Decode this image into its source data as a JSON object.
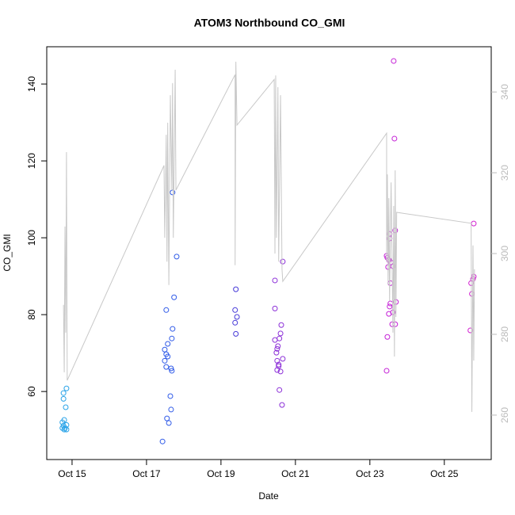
{
  "chart_data": {
    "type": "scatter",
    "title": "ATOM3 Northbound CO_GMI",
    "x_label": "Date",
    "y_label": "CO_GMI",
    "xlim": [
      14.32,
      26.26
    ],
    "xticks": [
      {
        "value": 15,
        "label": "Oct 15"
      },
      {
        "value": 17,
        "label": "Oct 17"
      },
      {
        "value": 19,
        "label": "Oct 19"
      },
      {
        "value": 21,
        "label": "Oct 21"
      },
      {
        "value": 23,
        "label": "Oct 23"
      },
      {
        "value": 25,
        "label": "Oct 25"
      }
    ],
    "ylim": [
      42.3,
      149.7
    ],
    "yticks": [
      60,
      80,
      100,
      120,
      140
    ],
    "y2lim": [
      249,
      351.2
    ],
    "y2ticks": [
      260,
      280,
      300,
      320,
      340
    ],
    "y2_color": "#bbbbbb",
    "series": [
      {
        "color": "#29a3e8",
        "x": [
          14.77,
          14.77,
          14.85,
          14.83,
          14.79,
          14.74,
          14.77,
          14.81,
          14.85,
          14.85,
          14.74,
          14.79
        ],
        "values": [
          59.6,
          58.1,
          60.8,
          55.9,
          52.6,
          52,
          51.1,
          50.5,
          50.1,
          51.3,
          50.5,
          50.1
        ]
      },
      {
        "color": "#2f5ae8",
        "x": [
          17.43,
          17.53,
          17.55,
          17.6,
          17.64,
          17.66,
          17.53,
          17.66,
          17.68,
          17.57,
          17.49,
          17.49,
          17.57,
          17.53,
          17.7,
          17.68,
          17.7,
          17.74,
          17.81
        ],
        "values": [
          47,
          81.2,
          53,
          51.8,
          58.8,
          55.3,
          66.4,
          66,
          65.4,
          69.1,
          68,
          70.9,
          72.4,
          69.7,
          76.3,
          73.8,
          111.8,
          84.5,
          95.1
        ]
      },
      {
        "color": "#4538d8",
        "x": [
          19.4,
          19.38,
          19.43,
          19.38,
          19.4
        ],
        "values": [
          86.6,
          81.2,
          79.4,
          77.9,
          75
        ]
      },
      {
        "color": "#8c2fd8",
        "x": [
          20.45,
          20.45,
          20.45,
          20.49,
          20.51,
          20.53,
          20.57,
          20.6,
          20.62,
          20.66,
          20.51,
          20.55,
          20.51,
          20.6,
          20.57,
          20.64,
          20.66,
          20.55
        ],
        "values": [
          88.9,
          81.6,
          73.4,
          70.1,
          71.1,
          71.8,
          73.8,
          75.1,
          77.3,
          68.5,
          68,
          66.6,
          65.6,
          65.2,
          60.4,
          56.5,
          93.8,
          67
        ]
      },
      {
        "color": "#c41fd6",
        "x": [
          23.45,
          23.47,
          23.45,
          23.47,
          23.49,
          23.51,
          23.53,
          23.53,
          23.55,
          23.53,
          23.51,
          23.57,
          23.62,
          23.62,
          23.6,
          23.68,
          23.68,
          23.7,
          23.66,
          23.64,
          23.55
        ],
        "values": [
          65.4,
          74.2,
          95.3,
          94.8,
          92.4,
          94.2,
          99.8,
          101,
          88.2,
          82.1,
          80.2,
          93.6,
          92.6,
          80.6,
          77.5,
          77.5,
          101.9,
          83.3,
          125.8,
          146,
          82.9
        ]
      },
      {
        "color": "#d21fd0",
        "x": [
          25.79,
          25.79,
          25.77,
          25.72,
          25.74,
          25.7
        ],
        "values": [
          103.7,
          89.9,
          89.3,
          88.2,
          85.4,
          75.9
        ]
      },
      {
        "type": "line",
        "axis": "y2",
        "color": "#c8c8c8",
        "x": [
          14.77,
          14.79,
          14.81,
          14.83,
          14.85,
          14.87,
          17.47,
          17.49,
          17.53,
          17.55,
          17.57,
          17.6,
          17.64,
          17.68,
          17.7,
          17.72,
          17.77,
          17.79,
          19.38,
          19.38,
          19.4,
          19.43,
          20.43,
          20.45,
          20.47,
          20.49,
          20.53,
          20.55,
          20.6,
          20.64,
          20.66,
          23.45,
          23.45,
          23.47,
          23.49,
          23.51,
          23.53,
          23.57,
          23.62,
          23.64,
          23.66,
          23.68,
          23.7,
          23.72,
          25.72,
          25.74,
          25.77,
          25.79,
          25.81
        ],
        "values": [
          287.3,
          270.6,
          306.7,
          280.4,
          325.1,
          268.6,
          321.8,
          303.9,
          329.4,
          298,
          332.4,
          292.2,
          339.2,
          315.7,
          342.2,
          303.9,
          345.5,
          315.7,
          344.3,
          297.1,
          347.5,
          331.8,
          343.1,
          300,
          344.1,
          303.9,
          341.2,
          298,
          339.2,
          296.1,
          293.1,
          329.8,
          298,
          319.6,
          292.2,
          313.7,
          288.2,
          317.6,
          280.4,
          311.8,
          274.5,
          320.6,
          284.3,
          310.2,
          307.5,
          260.8,
          302,
          273.5,
          296.1
        ]
      }
    ]
  }
}
